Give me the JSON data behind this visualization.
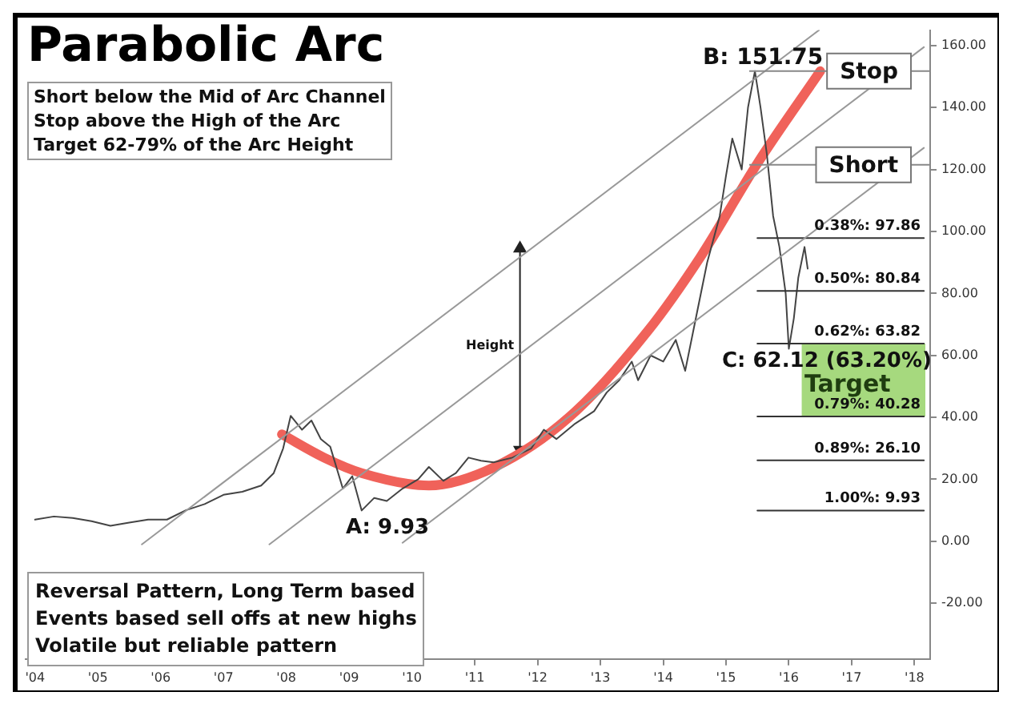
{
  "chart_data": {
    "type": "line",
    "title": "Parabolic Arc",
    "xlim": [
      2003.85,
      2018.25
    ],
    "xticks": [
      {
        "value": 2004,
        "label": "'04"
      },
      {
        "value": 2005,
        "label": "'05"
      },
      {
        "value": 2006,
        "label": "'06"
      },
      {
        "value": 2007,
        "label": "'07"
      },
      {
        "value": 2008,
        "label": "'08"
      },
      {
        "value": 2009,
        "label": "'09"
      },
      {
        "value": 2010,
        "label": "'10"
      },
      {
        "value": 2011,
        "label": "'11"
      },
      {
        "value": 2012,
        "label": "'12"
      },
      {
        "value": 2013,
        "label": "'13"
      },
      {
        "value": 2014,
        "label": "'14"
      },
      {
        "value": 2015,
        "label": "'15"
      },
      {
        "value": 2016,
        "label": "'16"
      },
      {
        "value": 2017,
        "label": "'17"
      },
      {
        "value": 2018,
        "label": "'18"
      }
    ],
    "ylim": [
      -38,
      165
    ],
    "yticks": [
      {
        "value": -20,
        "label": "-20.00"
      },
      {
        "value": 0,
        "label": "0.00"
      },
      {
        "value": 20,
        "label": "20.00"
      },
      {
        "value": 40,
        "label": "40.00"
      },
      {
        "value": 60,
        "label": "60.00"
      },
      {
        "value": 80,
        "label": "80.00"
      },
      {
        "value": 100,
        "label": "100.00"
      },
      {
        "value": 120,
        "label": "120.00"
      },
      {
        "value": 140,
        "label": "140.00"
      },
      {
        "value": 160,
        "label": "160.00"
      }
    ],
    "series": [
      {
        "type": "line",
        "color": "#999999",
        "x": [
          2005.7,
          2016.48
        ],
        "values": [
          -1,
          165
        ]
      },
      {
        "type": "line",
        "color": "#999999",
        "x": [
          2007.73,
          2018.15
        ],
        "values": [
          -1,
          159.5
        ]
      },
      {
        "type": "line",
        "color": "#999999",
        "x": [
          2009.85,
          2018.15
        ],
        "values": [
          -0.5,
          127
        ]
      },
      {
        "type": "line",
        "name": "0.38%: 97.86",
        "color": "#333333",
        "x": [
          2015.5,
          2018.15
        ],
        "values": [
          97.86,
          97.86
        ]
      },
      {
        "type": "line",
        "name": "0.50%: 80.84",
        "color": "#333333",
        "x": [
          2015.5,
          2018.15
        ],
        "values": [
          80.84,
          80.84
        ]
      },
      {
        "type": "line",
        "name": "0.62%: 63.82",
        "color": "#333333",
        "x": [
          2015.5,
          2018.15
        ],
        "values": [
          63.82,
          63.82
        ]
      },
      {
        "type": "line",
        "name": "0.79%: 40.28",
        "color": "#333333",
        "x": [
          2015.5,
          2018.15
        ],
        "values": [
          40.28,
          40.28
        ]
      },
      {
        "type": "line",
        "name": "0.89%: 26.10",
        "color": "#333333",
        "x": [
          2015.5,
          2018.15
        ],
        "values": [
          26.1,
          26.1
        ]
      },
      {
        "type": "line",
        "name": "1.00%: 9.93",
        "color": "#333333",
        "x": [
          2015.5,
          2018.15
        ],
        "values": [
          9.93,
          9.93
        ]
      },
      {
        "type": "line",
        "color": "#444444",
        "x": [
          2004.0,
          2004.3,
          2004.6,
          2004.9,
          2005.2,
          2005.5,
          2005.8,
          2006.1,
          2006.4,
          2006.7,
          2007.0,
          2007.3,
          2007.6,
          2007.8,
          2007.95,
          2008.07,
          2008.25,
          2008.4,
          2008.55,
          2008.7,
          2008.9,
          2009.05,
          2009.2,
          2009.4,
          2009.6,
          2009.85,
          2010.1,
          2010.27,
          2010.5,
          2010.7,
          2010.9,
          2011.1,
          2011.3,
          2011.6,
          2011.9,
          2012.1,
          2012.3,
          2012.6,
          2012.9,
          2013.1,
          2013.3,
          2013.5,
          2013.6,
          2013.8,
          2014.0,
          2014.2,
          2014.35,
          2014.5,
          2014.7,
          2014.9,
          2015.0,
          2015.1,
          2015.25,
          2015.35,
          2015.46,
          2015.55,
          2015.65,
          2015.75,
          2015.85,
          2015.95,
          2016.0,
          2016.08,
          2016.15,
          2016.25,
          2016.3
        ],
        "values": [
          7,
          8,
          7.5,
          6.5,
          5,
          6,
          7,
          7,
          10,
          12,
          15,
          16,
          18,
          22,
          30,
          40.5,
          36,
          39,
          33,
          30.5,
          17,
          21,
          9.93,
          14,
          13,
          17,
          20,
          24,
          19.5,
          22,
          27,
          26,
          25.5,
          27,
          30,
          36,
          33,
          38,
          42,
          48,
          52,
          58,
          52,
          60,
          58,
          65,
          55,
          70,
          90,
          105,
          118,
          130,
          120,
          140,
          151.75,
          140,
          125,
          105,
          95,
          80,
          62.12,
          72,
          85,
          95,
          88
        ]
      },
      {
        "type": "line",
        "color": "#f0625a",
        "x": [
          2007.93,
          2008.6,
          2009.2,
          2010.27,
          2011.32,
          2012.5,
          2013.76,
          2014.6,
          2015.5,
          2016.5
        ],
        "values": [
          34.5,
          27,
          22,
          18,
          24,
          40,
          68,
          92,
          122,
          151.75
        ]
      },
      {
        "type": "line",
        "color": "#222222",
        "marker": "triangle",
        "x": [
          2011.72,
          2011.72
        ],
        "values": [
          94.5,
          29.5
        ]
      }
    ],
    "ref_lines": [
      {
        "axis": "y",
        "value": 151.75,
        "label": "Stop",
        "color": "#888888"
      },
      {
        "axis": "y",
        "value": 121.5,
        "label": "Short",
        "color": "#888888"
      }
    ],
    "bands": [
      {
        "axis": "y",
        "from": 40.28,
        "to": 63.82,
        "label": "Target",
        "color": "#a6d97e"
      }
    ],
    "annotations": [
      "Short below the Mid of Arc Channel\nStop above the High of the Arc\nTarget 62-79% of the Arc Height",
      "Reversal Pattern, Long Term based\nEvents based sell offs at new highs\nVolatile but reliable pattern",
      "A: 9.93",
      "C: 62.12 (63.20%)",
      "Height",
      "B: 151.75"
    ]
  }
}
